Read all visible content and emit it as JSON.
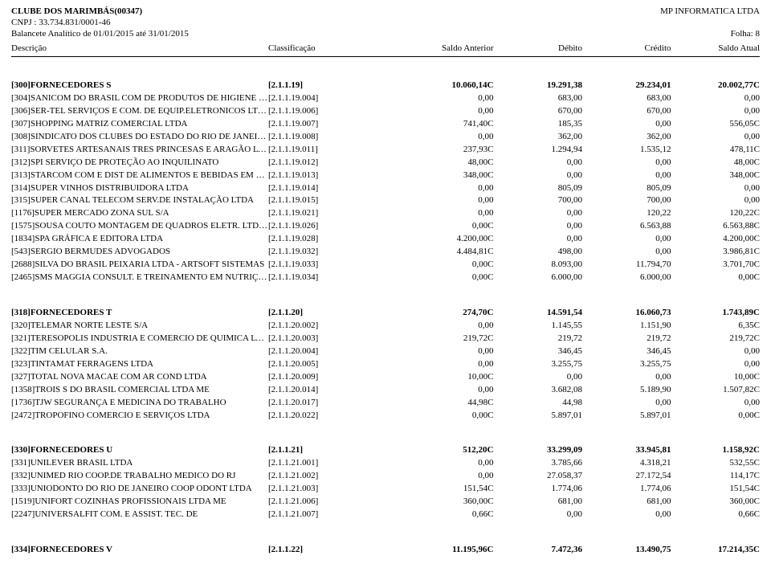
{
  "header": {
    "orgLine": "CLUBE DOS MARIMBÁS(00347)",
    "vendor": "MP INFORMATICA LTDA",
    "cnpj": "CNPJ : 33.734.831/0001-46",
    "period": "Balancete Analítico de 01/01/2015 até 31/01/2015",
    "page": "Folha: 8",
    "cols": {
      "descricao": "Descrição",
      "classificacao": "Classificação",
      "saldoAnterior": "Saldo Anterior",
      "debito": "Débito",
      "credito": "Crédito",
      "saldoAtual": "Saldo Atual"
    }
  },
  "groups": [
    {
      "totals": {
        "desc": "[300]FORNECEDORES S",
        "class": "[2.1.1.19]",
        "sa": "10.060,14C",
        "deb": "19.291,38",
        "cred": "29.234,01",
        "saAt": "20.002,77C"
      },
      "rows": [
        {
          "desc": "[304]SANICOM DO BRASIL COM DE PRODUTOS DE HIGIENE LTDA",
          "class": "[2.1.1.19.004]",
          "sa": "0,00",
          "deb": "683,00",
          "cred": "683,00",
          "saAt": "0,00"
        },
        {
          "desc": "[306]SER-TEL SERVIÇOS E COM. DE EQUIP.ELETRONICOS LTDA",
          "class": "[2.1.1.19.006]",
          "sa": "0,00",
          "deb": "670,00",
          "cred": "670,00",
          "saAt": "0,00"
        },
        {
          "desc": "[307]SHOPPING MATRIZ COMERCIAL LTDA",
          "class": "[2.1.1.19.007]",
          "sa": "741,40C",
          "deb": "185,35",
          "cred": "0,00",
          "saAt": "556,05C"
        },
        {
          "desc": "[308]SINDICATO DOS CLUBES DO ESTADO DO RIO DE JANEIRO",
          "class": "[2.1.1.19.008]",
          "sa": "0,00",
          "deb": "362,00",
          "cred": "362,00",
          "saAt": "0,00"
        },
        {
          "desc": "[311]SORVETES ARTESANAIS TRES PRINCESAS E ARAGÃO LTDA",
          "class": "[2.1.1.19.011]",
          "sa": "237,93C",
          "deb": "1.294,94",
          "cred": "1.535,12",
          "saAt": "478,11C"
        },
        {
          "desc": "[312]SPI SERVIÇO DE PROTEÇÃO AO INQUILINATO",
          "class": "[2.1.1.19.012]",
          "sa": "48,00C",
          "deb": "0,00",
          "cred": "0,00",
          "saAt": "48,00C"
        },
        {
          "desc": "[313]STARCOM COM E DIST DE ALIMENTOS E BEBIDAS EM GERAL",
          "class": "[2.1.1.19.013]",
          "sa": "348,00C",
          "deb": "0,00",
          "cred": "0,00",
          "saAt": "348,00C"
        },
        {
          "desc": "[314]SUPER VINHOS DISTRIBUIDORA LTDA",
          "class": "[2.1.1.19.014]",
          "sa": "0,00",
          "deb": "805,09",
          "cred": "805,09",
          "saAt": "0,00"
        },
        {
          "desc": "[315]SUPER CANAL TELECOM SERV.DE INSTALAÇÃO LTDA",
          "class": "[2.1.1.19.015]",
          "sa": "0,00",
          "deb": "700,00",
          "cred": "700,00",
          "saAt": "0,00"
        },
        {
          "desc": "[1176]SUPER MERCADO ZONA SUL S/A",
          "class": "[2.1.1.19.021]",
          "sa": "0,00",
          "deb": "0,00",
          "cred": "120,22",
          "saAt": "120,22C"
        },
        {
          "desc": "[1575]SOUSA COUTO MONTAGEM DE QUADROS ELETR. LTDA - ME",
          "class": "[2.1.1.19.026]",
          "sa": "0,00C",
          "deb": "0,00",
          "cred": "6.563,88",
          "saAt": "6.563,88C"
        },
        {
          "desc": "[1834]SPA GRÁFICA E EDITORA LTDA",
          "class": "[2.1.1.19.028]",
          "sa": "4.200,00C",
          "deb": "0,00",
          "cred": "0,00",
          "saAt": "4.200,00C"
        },
        {
          "desc": "[543]SERGIO BERMUDES ADVOGADOS",
          "class": "[2.1.1.19.032]",
          "sa": "4.484,81C",
          "deb": "498,00",
          "cred": "0,00",
          "saAt": "3.986,81C"
        },
        {
          "desc": "[2688]SILVA DO BRASIL PEIXARIA LTDA - ARTSOFT SISTEMAS",
          "class": "[2.1.1.19.033]",
          "sa": "0,00C",
          "deb": "8.093,00",
          "cred": "11.794,70",
          "saAt": "3.701,70C"
        },
        {
          "desc": "[2465]SMS MAGGIA CONSULT. E TREINAMENTO EM NUTRIÇÃO",
          "class": "[2.1.1.19.034]",
          "sa": "0,00C",
          "deb": "6.000,00",
          "cred": "6.000,00",
          "saAt": "0,00C"
        }
      ]
    },
    {
      "totals": {
        "desc": "[318]FORNECEDORES T",
        "class": "[2.1.1.20]",
        "sa": "274,70C",
        "deb": "14.591,54",
        "cred": "16.060,73",
        "saAt": "1.743,89C"
      },
      "rows": [
        {
          "desc": "[320]TELEMAR NORTE LESTE S/A",
          "class": "[2.1.1.20.002]",
          "sa": "0,00",
          "deb": "1.145,55",
          "cred": "1.151,90",
          "saAt": "6,35C"
        },
        {
          "desc": "[321]TERESOPOLIS INDUSTRIA E COMERCIO DE QUIMICA LTDA",
          "class": "[2.1.1.20.003]",
          "sa": "219,72C",
          "deb": "219,72",
          "cred": "219,72",
          "saAt": "219,72C"
        },
        {
          "desc": "[322]TIM CELULAR S.A.",
          "class": "[2.1.1.20.004]",
          "sa": "0,00",
          "deb": "346,45",
          "cred": "346,45",
          "saAt": "0,00"
        },
        {
          "desc": "[323]TINTAMAT FERRAGENS LTDA",
          "class": "[2.1.1.20.005]",
          "sa": "0,00",
          "deb": "3.255,75",
          "cred": "3.255,75",
          "saAt": "0,00"
        },
        {
          "desc": "[327]TOTAL NOVA MACAE COM AR COND LTDA",
          "class": "[2.1.1.20.009]",
          "sa": "10,00C",
          "deb": "0,00",
          "cred": "0,00",
          "saAt": "10,00C"
        },
        {
          "desc": "[1358]TROIS S DO BRASIL COMERCIAL LTDA ME",
          "class": "[2.1.1.20.014]",
          "sa": "0,00",
          "deb": "3.682,08",
          "cred": "5.189,90",
          "saAt": "1.507,82C"
        },
        {
          "desc": "[1736]TJW SEGURANÇA E MEDICINA DO TRABALHO",
          "class": "[2.1.1.20.017]",
          "sa": "44,98C",
          "deb": "44,98",
          "cred": "0,00",
          "saAt": "0,00"
        },
        {
          "desc": "[2472]TROPOFINO COMERCIO E SERVIÇOS LTDA",
          "class": "[2.1.1.20.022]",
          "sa": "0,00C",
          "deb": "5.897,01",
          "cred": "5.897,01",
          "saAt": "0,00C"
        }
      ]
    },
    {
      "totals": {
        "desc": "[330]FORNECEDORES U",
        "class": "[2.1.1.21]",
        "sa": "512,20C",
        "deb": "33.299,09",
        "cred": "33.945,81",
        "saAt": "1.158,92C"
      },
      "rows": [
        {
          "desc": "[331]UNILEVER BRASIL LTDA",
          "class": "[2.1.1.21.001]",
          "sa": "0,00",
          "deb": "3.785,66",
          "cred": "4.318,21",
          "saAt": "532,55C"
        },
        {
          "desc": "[332]UNIMED RIO COOP.DE TRABALHO MEDICO DO RJ",
          "class": "[2.1.1.21.002]",
          "sa": "0,00",
          "deb": "27.058,37",
          "cred": "27.172,54",
          "saAt": "114,17C"
        },
        {
          "desc": "[333]UNIODONTO DO RIO DE JANEIRO COOP ODONT LTDA",
          "class": "[2.1.1.21.003]",
          "sa": "151,54C",
          "deb": "1.774,06",
          "cred": "1.774,06",
          "saAt": "151,54C"
        },
        {
          "desc": "[1519]UNIFORT COZINHAS PROFISSIONAIS LTDA ME",
          "class": "[2.1.1.21.006]",
          "sa": "360,00C",
          "deb": "681,00",
          "cred": "681,00",
          "saAt": "360,00C"
        },
        {
          "desc": "[2247]UNIVERSALFIT COM. E ASSIST. TEC. DE",
          "class": "[2.1.1.21.007]",
          "sa": "0,66C",
          "deb": "0,00",
          "cred": "0,00",
          "saAt": "0,66C"
        }
      ]
    },
    {
      "totals": {
        "desc": "[334]FORNECEDORES V",
        "class": "[2.1.1.22]",
        "sa": "11.195,96C",
        "deb": "7.472,36",
        "cred": "13.490,75",
        "saAt": "17.214,35C"
      },
      "rows": []
    }
  ]
}
